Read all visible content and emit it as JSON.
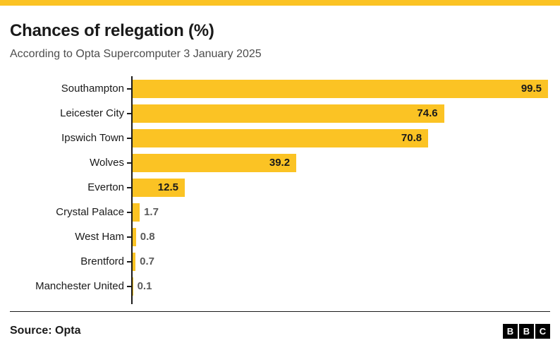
{
  "header": {
    "title": "Chances of relegation (%)",
    "subtitle": "According to Opta Supercomputer 3 January 2025"
  },
  "chart_data": {
    "type": "bar",
    "orientation": "horizontal",
    "title": "Chances of relegation (%)",
    "subtitle": "According to Opta Supercomputer 3 January 2025",
    "categories": [
      "Southampton",
      "Leicester City",
      "Ipswich Town",
      "Wolves",
      "Everton",
      "Crystal Palace",
      "West Ham",
      "Brentford",
      "Manchester United"
    ],
    "values": [
      99.5,
      74.6,
      70.8,
      39.2,
      12.5,
      1.7,
      0.8,
      0.7,
      0.1
    ],
    "xlabel": "",
    "ylabel": "",
    "xlim": [
      0,
      100
    ],
    "grid": false,
    "legend": false,
    "bar_color": "#fbc324",
    "value_label_inside_color": "#1a1a1a",
    "value_label_outside_color": "#5a5a5a"
  },
  "footer": {
    "source": "Source: Opta",
    "logo_letters": [
      "B",
      "B",
      "C"
    ]
  },
  "theme": {
    "accent": "#fbc324",
    "top_border": "#fbc324",
    "text": "#1a1a1a",
    "subtitle_color": "#4d4d4d",
    "axis_color": "#1a1a1a",
    "background": "#ffffff"
  }
}
